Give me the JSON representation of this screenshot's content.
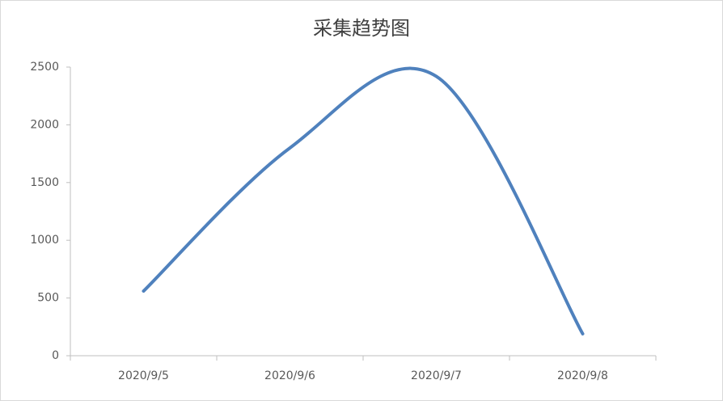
{
  "chart_data": {
    "type": "line",
    "title": "采集趋势图",
    "categories": [
      "2020/9/5",
      "2020/9/6",
      "2020/9/7",
      "2020/9/8"
    ],
    "values": [
      560,
      1800,
      2420,
      190
    ],
    "color": "#4f81bd",
    "ylim": [
      0,
      2500
    ],
    "yticks": [
      0,
      500,
      1000,
      1500,
      2000,
      2500
    ],
    "smooth": true
  }
}
